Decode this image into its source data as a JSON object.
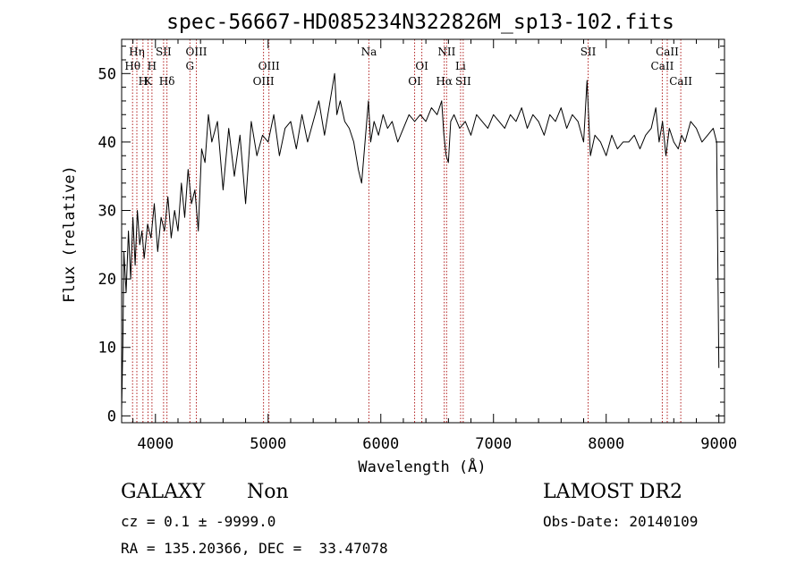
{
  "chart_data": {
    "type": "line",
    "title": "spec-56667-HD085234N322826M_sp13-102.fits",
    "xlabel": "Wavelength (Å)",
    "ylabel": "Flux (relative)",
    "xlim": [
      3700,
      9050
    ],
    "ylim": [
      -1,
      55
    ],
    "x_ticks": [
      4000,
      5000,
      6000,
      7000,
      8000,
      9000
    ],
    "y_ticks": [
      0,
      10,
      20,
      30,
      40,
      50
    ],
    "grid": false,
    "line_color": "#000000",
    "marker_color": "#b22222",
    "series": [
      {
        "x": [
          3700,
          3710,
          3720,
          3740,
          3760,
          3780,
          3800,
          3820,
          3840,
          3860,
          3880,
          3900,
          3930,
          3960,
          3990,
          4020,
          4050,
          4080,
          4110,
          4140,
          4170,
          4200,
          4230,
          4260,
          4290,
          4320,
          4350,
          4380,
          4410,
          4440,
          4470,
          4500,
          4550,
          4600,
          4650,
          4700,
          4750,
          4800,
          4850,
          4900,
          4950,
          5000,
          5050,
          5100,
          5150,
          5200,
          5250,
          5300,
          5350,
          5400,
          5450,
          5500,
          5540,
          5570,
          5590,
          5610,
          5640,
          5680,
          5720,
          5760,
          5800,
          5830,
          5860,
          5890,
          5910,
          5940,
          5980,
          6020,
          6060,
          6100,
          6150,
          6200,
          6250,
          6300,
          6350,
          6400,
          6450,
          6500,
          6540,
          6560,
          6580,
          6600,
          6620,
          6650,
          6700,
          6750,
          6800,
          6850,
          6900,
          6950,
          7000,
          7050,
          7100,
          7150,
          7200,
          7250,
          7300,
          7350,
          7400,
          7450,
          7500,
          7550,
          7600,
          7650,
          7700,
          7750,
          7800,
          7830,
          7860,
          7900,
          7950,
          8000,
          8050,
          8100,
          8150,
          8200,
          8250,
          8300,
          8350,
          8400,
          8440,
          8470,
          8500,
          8530,
          8560,
          8600,
          8640,
          8670,
          8700,
          8750,
          8800,
          8850,
          8900,
          8950,
          8980,
          9000
        ],
        "y": [
          1,
          10,
          24,
          18,
          27,
          20,
          29,
          22,
          30,
          25,
          27,
          23,
          28,
          26,
          31,
          24,
          29,
          27,
          32,
          26,
          30,
          27,
          34,
          29,
          36,
          31,
          33,
          27,
          39,
          37,
          44,
          40,
          43,
          33,
          42,
          35,
          41,
          31,
          43,
          38,
          41,
          40,
          44,
          38,
          42,
          43,
          39,
          44,
          40,
          43,
          46,
          41,
          45,
          48,
          50,
          44,
          46,
          43,
          42,
          40,
          36,
          34,
          40,
          46,
          40,
          43,
          41,
          44,
          42,
          43,
          40,
          42,
          44,
          43,
          44,
          43,
          45,
          44,
          46,
          41,
          38,
          37,
          43,
          44,
          42,
          43,
          41,
          44,
          43,
          42,
          44,
          43,
          42,
          44,
          43,
          45,
          42,
          44,
          43,
          41,
          44,
          43,
          45,
          42,
          44,
          43,
          40,
          49,
          38,
          41,
          40,
          38,
          41,
          39,
          40,
          40,
          41,
          39,
          41,
          42,
          45,
          40,
          43,
          38,
          42,
          40,
          39,
          41,
          40,
          43,
          42,
          40,
          41,
          42,
          40,
          7
        ]
      }
    ],
    "lines": [
      {
        "label": "Hη",
        "x": 3835,
        "row": 1
      },
      {
        "label": "Hθ",
        "x": 3797,
        "row": 2
      },
      {
        "label": "H",
        "x": 3889,
        "row": 3
      },
      {
        "label": "H",
        "x": 3969,
        "row": 2
      },
      {
        "label": "K",
        "x": 3934,
        "row": 3
      },
      {
        "label": "SII",
        "x": 4072,
        "row": 1
      },
      {
        "label": "Hδ",
        "x": 4102,
        "row": 3
      },
      {
        "label": "OIII",
        "x": 4363,
        "row": 1
      },
      {
        "label": "G",
        "x": 4306,
        "row": 2
      },
      {
        "label": "OIII",
        "x": 5007,
        "row": 2
      },
      {
        "label": "OIII",
        "x": 4959,
        "row": 3
      },
      {
        "label": "Na",
        "x": 5894,
        "row": 1
      },
      {
        "label": "OI",
        "x": 6364,
        "row": 2
      },
      {
        "label": "OI",
        "x": 6300,
        "row": 3
      },
      {
        "label": "NII",
        "x": 6584,
        "row": 1
      },
      {
        "label": "Hα",
        "x": 6563,
        "row": 3
      },
      {
        "label": "Li",
        "x": 6708,
        "row": 2
      },
      {
        "label": "SII",
        "x": 6731,
        "row": 3
      },
      {
        "label": "SII",
        "x": 7840,
        "row": 1
      },
      {
        "label": "CaII",
        "x": 8542,
        "row": 1
      },
      {
        "label": "CaII",
        "x": 8498,
        "row": 2
      },
      {
        "label": "CaII",
        "x": 8662,
        "row": 3
      }
    ]
  },
  "info": {
    "class_label": "GALAXY",
    "subclass_label": "Non",
    "survey_label": "LAMOST DR2",
    "cz_text": "cz = 0.1 ± -9999.0",
    "obs_date_text": "Obs-Date: 20140109",
    "coords_text": "RA = 135.20366, DEC =  33.47078"
  }
}
